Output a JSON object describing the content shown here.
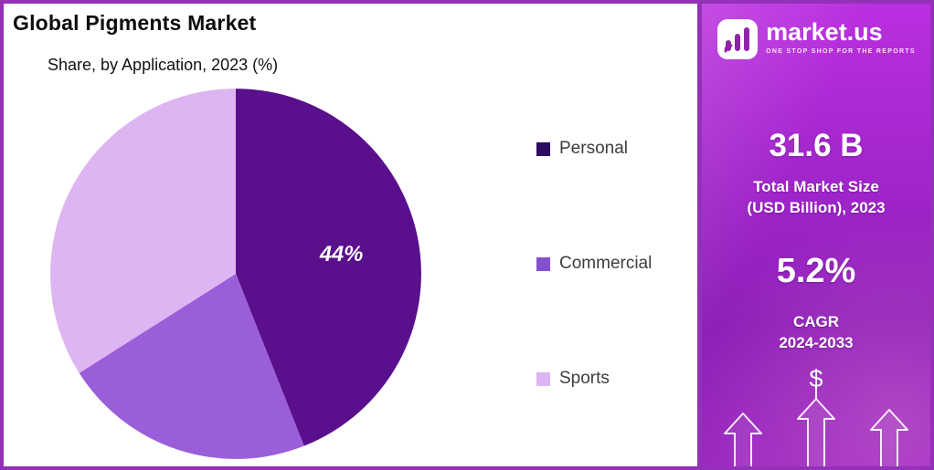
{
  "page": {
    "border_color": "#9331b8"
  },
  "chart": {
    "title": "Global Pigments Market",
    "subtitle": "Share, by Application, 2023 (%)"
  },
  "chart_data": {
    "type": "pie",
    "title": "Global Pigments Market",
    "subtitle": "Share, by Application, 2023 (%)",
    "categories": [
      "Personal",
      "Commercial",
      "Sports"
    ],
    "values": [
      44,
      22,
      34
    ],
    "colors": [
      "#5a0f8c",
      "#9a5fd8",
      "#ddb5f2"
    ],
    "legend_colors": [
      "#2d0a63",
      "#8450d2",
      "#ddb5f2"
    ],
    "data_labels": [
      "44%",
      "",
      ""
    ],
    "start_angle_deg": 0,
    "direction": "clockwise",
    "legend_position": "right",
    "label_color": "#ffffff"
  },
  "sidebar": {
    "brand": {
      "name": "market.us",
      "tagline": "ONE STOP SHOP FOR THE REPORTS"
    },
    "stat1": {
      "value": "31.6 B",
      "label": "Total Market Size\n(USD Billion), 2023"
    },
    "stat2": {
      "value": "5.2%",
      "label": "CAGR\n2024-2033"
    },
    "dollar": "$"
  }
}
